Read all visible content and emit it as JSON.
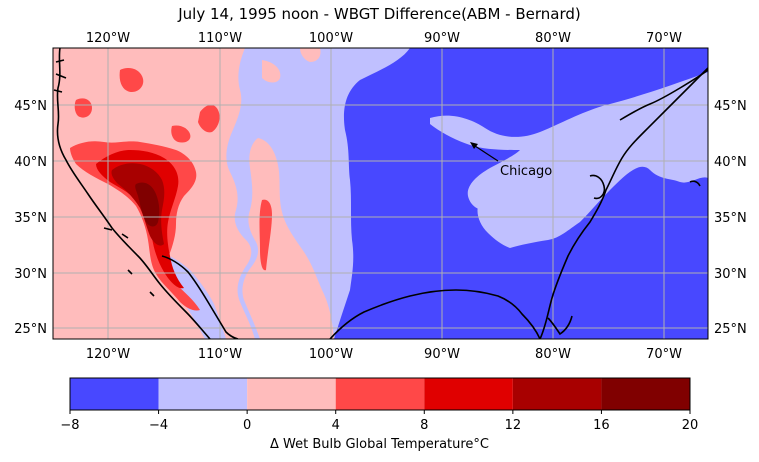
{
  "title": "July 14, 1995 noon - WBGT Difference(ABM - Bernard)",
  "lon_ticks": [
    "120°W",
    "110°W",
    "100°W",
    "90°W",
    "80°W",
    "70°W"
  ],
  "lat_ticks": [
    "45°N",
    "40°N",
    "35°N",
    "30°N",
    "25°N"
  ],
  "annotation": {
    "text": "Chicago"
  },
  "colorbar": {
    "label": "Δ Wet Bulb Global Temperature°C",
    "ticks": [
      "−8",
      "−4",
      "0",
      "4",
      "8",
      "12",
      "16",
      "20"
    ],
    "bins": [
      {
        "range": [
          -8,
          -4
        ],
        "color": "#4848ff"
      },
      {
        "range": [
          -4,
          0
        ],
        "color": "#c0c0ff"
      },
      {
        "range": [
          0,
          4
        ],
        "color": "#ffbcbc"
      },
      {
        "range": [
          4,
          8
        ],
        "color": "#ff4848"
      },
      {
        "range": [
          8,
          12
        ],
        "color": "#e00000"
      },
      {
        "range": [
          12,
          16
        ],
        "color": "#a80000"
      },
      {
        "range": [
          16,
          20
        ],
        "color": "#800000"
      }
    ]
  }
}
